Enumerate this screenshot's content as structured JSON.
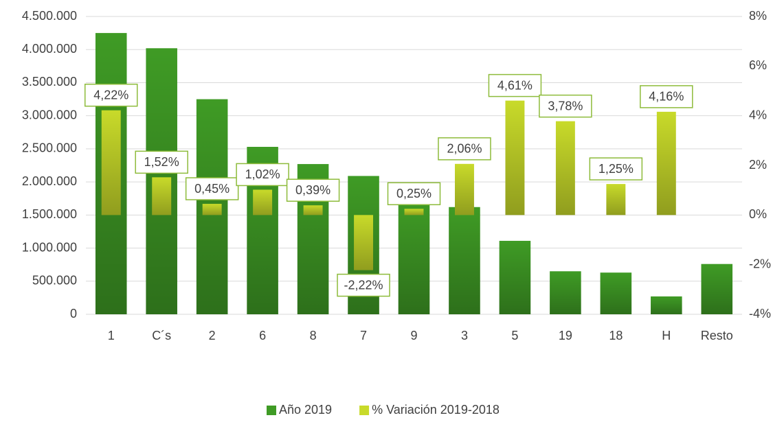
{
  "chart_data": {
    "type": "bar",
    "categories": [
      "1",
      "C´s",
      "2",
      "6",
      "8",
      "7",
      "9",
      "3",
      "5",
      "19",
      "18",
      "H",
      "Resto"
    ],
    "series": [
      {
        "name": "Año 2019",
        "color": "#3f9b25",
        "values": [
          4250000,
          4020000,
          3250000,
          2530000,
          2270000,
          2090000,
          1700000,
          1620000,
          1110000,
          650000,
          630000,
          270000,
          760000
        ]
      },
      {
        "name": "% Variación 2019-2018",
        "color": "#c8da2a",
        "axis": "y2",
        "values": [
          4.22,
          1.52,
          0.45,
          1.02,
          0.39,
          -2.22,
          0.25,
          2.06,
          4.61,
          3.78,
          1.25,
          4.16,
          null
        ],
        "value_labels": [
          "4,22%",
          "1,52%",
          "0,45%",
          "1,02%",
          "0,39%",
          "-2,22%",
          "0,25%",
          "2,06%",
          "4,61%",
          "3,78%",
          "1,25%",
          "4,16%",
          null
        ]
      }
    ],
    "ylim": [
      0,
      4500000
    ],
    "yticks": [
      0,
      {
        "value": 500000,
        "label": "500.000"
      },
      {
        "value": 1000000,
        "label": "1.000.000"
      },
      {
        "value": 1500000,
        "label": "1.500.000"
      },
      {
        "value": 2000000,
        "label": "2.000.000"
      },
      {
        "value": 2500000,
        "label": "2.500.000"
      },
      {
        "value": 3000000,
        "label": "3.000.000"
      },
      {
        "value": 3500000,
        "label": "3.500.000"
      },
      {
        "value": 4000000,
        "label": "4.000.000"
      },
      {
        "value": 4500000,
        "label": "4.500.000"
      }
    ],
    "y2lim": [
      -4,
      8
    ],
    "y2ticks": [
      {
        "value": -4,
        "label": "-4%"
      },
      {
        "value": -2,
        "label": "-2%"
      },
      {
        "value": 0,
        "label": "0%"
      },
      {
        "value": 2,
        "label": "2%"
      },
      {
        "value": 4,
        "label": "4%"
      },
      {
        "value": 6,
        "label": "6%"
      },
      {
        "value": 8,
        "label": "8%"
      }
    ],
    "grid": true,
    "legend": "bottom"
  }
}
